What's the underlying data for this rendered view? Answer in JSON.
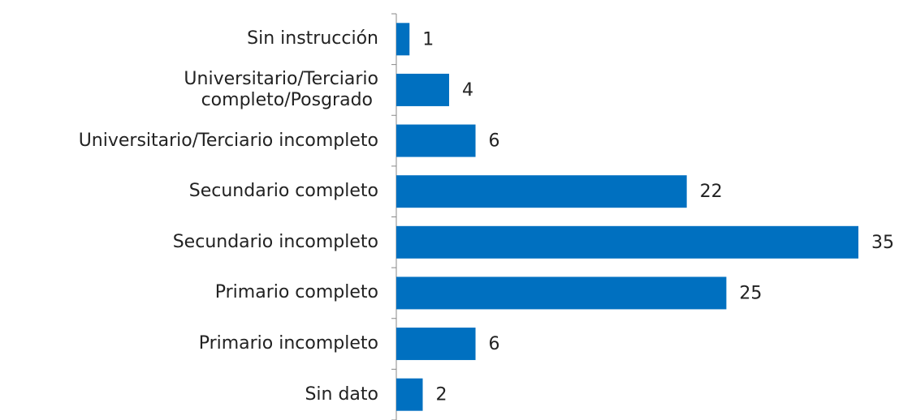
{
  "chart_data": {
    "type": "barh",
    "categories": [
      "Sin instrucción",
      "Universitario/Terciario\ncompleto/Posgrado ",
      "Universitario/Terciario incompleto",
      "Secundario completo",
      "Secundario incompleto",
      "Primario completo",
      "Primario incompleto",
      "Sin dato"
    ],
    "values": [
      1,
      4,
      6,
      22,
      35,
      25,
      6,
      2
    ],
    "color": "#0070c0"
  }
}
